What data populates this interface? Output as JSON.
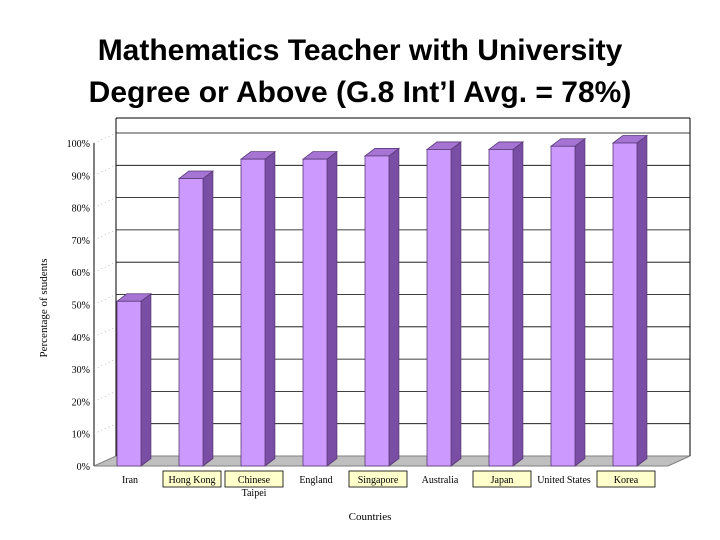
{
  "slide": {
    "title_line1": "Mathematics Teacher with University",
    "title_line2": "Degree or Above (G.8 Int’l Avg. = 78%)"
  },
  "chart_data": {
    "type": "bar",
    "categories": [
      {
        "lines": [
          "Iran"
        ],
        "highlight": false
      },
      {
        "lines": [
          "Hong Kong"
        ],
        "highlight": true
      },
      {
        "lines": [
          "Chinese",
          "Taipei"
        ],
        "highlight": true
      },
      {
        "lines": [
          "England"
        ],
        "highlight": false
      },
      {
        "lines": [
          "Singapore"
        ],
        "highlight": true
      },
      {
        "lines": [
          "Australia"
        ],
        "highlight": false
      },
      {
        "lines": [
          "Japan"
        ],
        "highlight": true
      },
      {
        "lines": [
          "United States"
        ],
        "highlight": false
      },
      {
        "lines": [
          "Korea"
        ],
        "highlight": true
      }
    ],
    "values": [
      51,
      89,
      95,
      95,
      96,
      98,
      98,
      99,
      100
    ],
    "ylabel": "Percentage of students",
    "xlabel": "Countries",
    "ylim": [
      0,
      100
    ],
    "yticks": [
      "0%",
      "10%",
      "20%",
      "30%",
      "40%",
      "50%",
      "60%",
      "70%",
      "80%",
      "90%",
      "100%"
    ],
    "grid": true,
    "colors": {
      "bar_front": "#cc99ff",
      "bar_side": "#7b4ea6",
      "bar_top": "#a675d4",
      "bar_edge": "#5a3a78",
      "floor": "#bfbfbf",
      "highlight_label_bg": "#ffffcc"
    }
  }
}
